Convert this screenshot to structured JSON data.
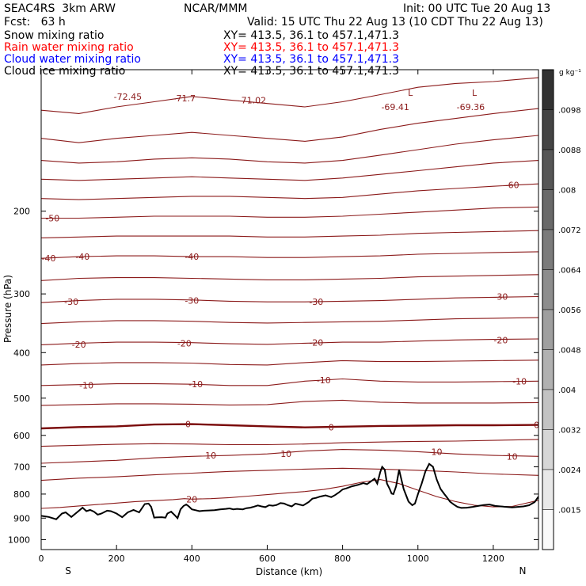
{
  "header": {
    "model": "SEAC4RS  3km ARW",
    "org": "NCAR/MMM",
    "init": "Init: 00 UTC Tue 20 Aug 13",
    "fcst": "Fcst:   63 h",
    "valid": "Valid: 15 UTC Thu 22 Aug 13 (10 CDT Thu 22 Aug 13)"
  },
  "fields": [
    {
      "label": "Snow mixing ratio",
      "xy": "XY= 413.5, 36.1 to 457.1,471.3",
      "color": "#000000"
    },
    {
      "label": "Rain water mixing ratio",
      "xy": "XY= 413.5, 36.1 to 457.1,471.3",
      "color": "#ff0000"
    },
    {
      "label": "Cloud water mixing ratio",
      "xy": "XY= 413.5, 36.1 to 457.1,471.3",
      "color": "#0000ff"
    },
    {
      "label": "Cloud ice mixing ratio",
      "xy": "XY= 413.5, 36.1 to 457.1,471.3",
      "color": "#000000"
    }
  ],
  "colors": {
    "contour": "#8b1a1a",
    "zero_contour": "#7a0a0a",
    "terrain": "#000000"
  },
  "chart_data": {
    "type": "line",
    "title": "",
    "xlabel": "Distance (km)",
    "ylabel": "Pressure (hPa)",
    "xlim": [
      0,
      1320
    ],
    "ylim": [
      1050,
      100
    ],
    "y_scale": "log",
    "x_ticks": [
      0,
      200,
      400,
      600,
      800,
      1000,
      1200
    ],
    "y_ticks": [
      200,
      300,
      400,
      500,
      600,
      700,
      800,
      900,
      1000
    ],
    "x_end_labels": {
      "left": "S",
      "right": "N"
    },
    "temperature_contours": [
      {
        "value": -72,
        "x": [
          0,
          100,
          200,
          300,
          400,
          500,
          600,
          700,
          800,
          900,
          1000,
          1100,
          1200,
          1320
        ],
        "p": [
          122,
          124,
          120,
          117,
          114,
          116,
          118,
          120,
          117,
          113,
          109,
          107,
          106,
          104
        ]
      },
      {
        "value": -70,
        "x": [
          0,
          100,
          200,
          300,
          400,
          500,
          600,
          700,
          800,
          900,
          1000,
          1100,
          1200,
          1320
        ],
        "p": [
          140,
          143,
          140,
          138,
          136,
          138,
          140,
          142,
          139,
          134,
          130,
          127,
          124,
          121
        ]
      },
      {
        "value": -65,
        "x": [
          0,
          100,
          200,
          300,
          400,
          500,
          600,
          700,
          800,
          900,
          1000,
          1100,
          1200,
          1320
        ],
        "p": [
          156,
          158,
          157,
          155,
          154,
          155,
          157,
          158,
          156,
          152,
          148,
          144,
          141,
          138
        ]
      },
      {
        "value": -60,
        "x": [
          0,
          100,
          200,
          300,
          400,
          500,
          600,
          700,
          800,
          900,
          1000,
          1100,
          1200,
          1320
        ],
        "p": [
          171,
          172,
          171,
          170,
          169,
          170,
          171,
          172,
          170,
          167,
          164,
          161,
          158,
          156
        ]
      },
      {
        "value": -55,
        "x": [
          0,
          100,
          200,
          300,
          400,
          500,
          600,
          700,
          800,
          900,
          1000,
          1100,
          1200,
          1320
        ],
        "p": [
          188,
          189,
          188,
          187,
          186,
          186,
          187,
          188,
          187,
          184,
          181,
          179,
          177,
          175
        ]
      },
      {
        "value": -50,
        "x": [
          0,
          100,
          200,
          300,
          400,
          500,
          600,
          700,
          800,
          900,
          1000,
          1100,
          1200,
          1320
        ],
        "p": [
          207,
          207,
          206,
          205,
          205,
          205,
          206,
          206,
          205,
          203,
          201,
          199,
          197,
          196
        ]
      },
      {
        "value": -45,
        "x": [
          0,
          100,
          200,
          300,
          400,
          500,
          600,
          700,
          800,
          900,
          1000,
          1100,
          1200,
          1320
        ],
        "p": [
          228,
          227,
          226,
          226,
          226,
          226,
          227,
          227,
          226,
          225,
          223,
          222,
          221,
          220
        ]
      },
      {
        "value": -40,
        "x": [
          0,
          100,
          200,
          300,
          400,
          500,
          600,
          700,
          800,
          900,
          1000,
          1100,
          1200,
          1320
        ],
        "p": [
          252,
          250,
          249,
          249,
          250,
          250,
          251,
          251,
          250,
          249,
          247,
          246,
          245,
          244
        ]
      },
      {
        "value": -35,
        "x": [
          0,
          100,
          200,
          300,
          400,
          500,
          600,
          700,
          800,
          900,
          1000,
          1100,
          1200,
          1320
        ],
        "p": [
          281,
          278,
          277,
          277,
          278,
          279,
          280,
          280,
          279,
          278,
          276,
          275,
          274,
          273
        ]
      },
      {
        "value": -30,
        "x": [
          0,
          100,
          200,
          300,
          400,
          500,
          600,
          700,
          800,
          900,
          1000,
          1100,
          1200,
          1320
        ],
        "p": [
          313,
          310,
          308,
          308,
          309,
          311,
          312,
          312,
          311,
          310,
          308,
          306,
          305,
          304
        ]
      },
      {
        "value": -25,
        "x": [
          0,
          100,
          200,
          300,
          400,
          500,
          600,
          700,
          800,
          900,
          1000,
          1100,
          1200,
          1320
        ],
        "p": [
          347,
          344,
          342,
          342,
          343,
          345,
          346,
          345,
          344,
          343,
          341,
          339,
          338,
          337
        ]
      },
      {
        "value": -20,
        "x": [
          0,
          100,
          200,
          300,
          400,
          500,
          600,
          700,
          800,
          900,
          1000,
          1100,
          1200,
          1320
        ],
        "p": [
          385,
          382,
          380,
          380,
          381,
          383,
          384,
          382,
          380,
          380,
          378,
          376,
          375,
          374
        ]
      },
      {
        "value": -15,
        "x": [
          0,
          100,
          200,
          300,
          400,
          500,
          600,
          700,
          800,
          900,
          1000,
          1100,
          1200,
          1320
        ],
        "p": [
          425,
          422,
          420,
          420,
          421,
          424,
          425,
          420,
          416,
          418,
          418,
          417,
          416,
          415
        ]
      },
      {
        "value": -10,
        "x": [
          0,
          100,
          200,
          300,
          400,
          500,
          600,
          700,
          800,
          900,
          1000,
          1100,
          1200,
          1320
        ],
        "p": [
          470,
          468,
          466,
          466,
          467,
          470,
          470,
          460,
          455,
          460,
          462,
          462,
          461,
          460
        ]
      },
      {
        "value": -5,
        "x": [
          0,
          100,
          200,
          300,
          400,
          500,
          600,
          700,
          800,
          900,
          1000,
          1100,
          1200,
          1320
        ],
        "p": [
          518,
          516,
          514,
          514,
          515,
          517,
          516,
          508,
          505,
          510,
          512,
          512,
          512,
          511
        ]
      },
      {
        "value": 0,
        "x": [
          0,
          100,
          200,
          300,
          400,
          500,
          600,
          700,
          800,
          900,
          1000,
          1100,
          1200,
          1320
        ],
        "p": [
          580,
          576,
          574,
          569,
          568,
          571,
          574,
          577,
          575,
          573,
          572,
          571,
          571,
          570
        ]
      },
      {
        "value": 5,
        "x": [
          0,
          100,
          200,
          300,
          400,
          500,
          600,
          700,
          800,
          900,
          1000,
          1100,
          1200,
          1320
        ],
        "p": [
          633,
          630,
          627,
          625,
          626,
          628,
          628,
          626,
          622,
          620,
          618,
          617,
          615,
          612
        ]
      },
      {
        "value": 10,
        "x": [
          0,
          100,
          200,
          300,
          400,
          500,
          600,
          700,
          800,
          900,
          1000,
          1100,
          1200,
          1320
        ],
        "p": [
          688,
          683,
          678,
          670,
          665,
          662,
          657,
          648,
          643,
          645,
          650,
          657,
          662,
          665
        ]
      },
      {
        "value": 15,
        "x": [
          0,
          100,
          200,
          300,
          400,
          500,
          600,
          700,
          800,
          900,
          1000,
          1100,
          1200,
          1320
        ],
        "p": [
          748,
          740,
          735,
          728,
          722,
          716,
          712,
          708,
          705,
          708,
          712,
          718,
          725,
          730
        ]
      },
      {
        "value": 20,
        "x": [
          0,
          50,
          100,
          150,
          200,
          250,
          300,
          350,
          380,
          400,
          450,
          500,
          550,
          600,
          650,
          700,
          750,
          800,
          850,
          900,
          950,
          1000,
          1050,
          1100,
          1150,
          1200,
          1250,
          1320
        ],
        "p": [
          858,
          854,
          848,
          842,
          836,
          830,
          826,
          822,
          818,
          820,
          818,
          814,
          808,
          802,
          796,
          790,
          782,
          770,
          755,
          745,
          760,
          785,
          810,
          830,
          845,
          852,
          850,
          825
        ]
      }
    ],
    "contour_labels": [
      {
        "text": "-72.45",
        "x": 230,
        "p": 114
      },
      {
        "text": "-71.7",
        "x": 380,
        "p": 115
      },
      {
        "text": "-71.02",
        "x": 560,
        "p": 116
      },
      {
        "text": "-69.41",
        "x": 940,
        "p": 120
      },
      {
        "text": "-69.36",
        "x": 1140,
        "p": 120
      },
      {
        "text": "-60",
        "x": 1250,
        "p": 176
      },
      {
        "text": "-50",
        "x": 30,
        "p": 207
      },
      {
        "text": "-40",
        "x": 20,
        "p": 252
      },
      {
        "text": "-40",
        "x": 110,
        "p": 250
      },
      {
        "text": "-40",
        "x": 400,
        "p": 250
      },
      {
        "text": "-30",
        "x": 80,
        "p": 312
      },
      {
        "text": "-30",
        "x": 400,
        "p": 310
      },
      {
        "text": "-30",
        "x": 730,
        "p": 312
      },
      {
        "text": "-30",
        "x": 1220,
        "p": 304
      },
      {
        "text": "-20",
        "x": 100,
        "p": 384
      },
      {
        "text": "-20",
        "x": 380,
        "p": 382
      },
      {
        "text": "-20",
        "x": 730,
        "p": 381
      },
      {
        "text": "-20",
        "x": 1220,
        "p": 376
      },
      {
        "text": "-10",
        "x": 120,
        "p": 469
      },
      {
        "text": "-10",
        "x": 410,
        "p": 467
      },
      {
        "text": "-10",
        "x": 750,
        "p": 458
      },
      {
        "text": "-10",
        "x": 1270,
        "p": 460
      },
      {
        "text": "0",
        "x": 390,
        "p": 568
      },
      {
        "text": "0",
        "x": 770,
        "p": 576
      },
      {
        "text": "0",
        "x": 1315,
        "p": 570
      },
      {
        "text": "10",
        "x": 450,
        "p": 662
      },
      {
        "text": "10",
        "x": 650,
        "p": 657
      },
      {
        "text": "10",
        "x": 1050,
        "p": 650
      },
      {
        "text": "10",
        "x": 1250,
        "p": 665
      },
      {
        "text": "20",
        "x": 400,
        "p": 820
      }
    ],
    "extra_text": [
      {
        "text": "L",
        "x": 980,
        "p": 112
      },
      {
        "text": "L",
        "x": 1150,
        "p": 112
      }
    ],
    "terrain": {
      "x": [
        0,
        20,
        40,
        55,
        65,
        80,
        95,
        110,
        120,
        130,
        140,
        150,
        160,
        175,
        185,
        200,
        215,
        230,
        245,
        260,
        275,
        285,
        292,
        300,
        305,
        320,
        330,
        335,
        345,
        355,
        362,
        370,
        378,
        385,
        392,
        400,
        410,
        420,
        432,
        445,
        460,
        475,
        490,
        500,
        510,
        520,
        535,
        545,
        555,
        565,
        575,
        585,
        595,
        605,
        615,
        625,
        635,
        645,
        655,
        665,
        675,
        685,
        695,
        710,
        720,
        730,
        740,
        755,
        770,
        780,
        790,
        800,
        810,
        825,
        840,
        855,
        865,
        875,
        885,
        892,
        900,
        905,
        912,
        918,
        925,
        930,
        935,
        942,
        950,
        962,
        975,
        985,
        992,
        1000,
        1010,
        1020,
        1030,
        1040,
        1050,
        1060,
        1070,
        1078,
        1085,
        1095,
        1105,
        1115,
        1130,
        1145,
        1160,
        1175,
        1190,
        1205,
        1220,
        1235,
        1250,
        1265,
        1280,
        1295,
        1310,
        1320
      ],
      "p": [
        890,
        895,
        905,
        880,
        875,
        895,
        875,
        855,
        870,
        865,
        872,
        885,
        880,
        868,
        870,
        880,
        896,
        875,
        865,
        875,
        840,
        838,
        852,
        898,
        897,
        896,
        898,
        880,
        872,
        888,
        900,
        862,
        848,
        842,
        850,
        862,
        866,
        870,
        868,
        867,
        866,
        862,
        860,
        858,
        862,
        860,
        862,
        857,
        855,
        851,
        846,
        850,
        853,
        845,
        847,
        844,
        836,
        838,
        845,
        850,
        838,
        842,
        846,
        832,
        818,
        815,
        810,
        805,
        812,
        804,
        794,
        782,
        778,
        770,
        765,
        758,
        762,
        752,
        742,
        760,
        718,
        700,
        710,
        760,
        780,
        798,
        800,
        770,
        710,
        780,
        830,
        845,
        838,
        800,
        760,
        715,
        690,
        700,
        745,
        780,
        800,
        815,
        830,
        842,
        852,
        856,
        855,
        852,
        848,
        844,
        842,
        848,
        850,
        852,
        854,
        852,
        850,
        845,
        832,
        810
      ]
    },
    "colorbar": {
      "unit": "g kg⁻¹",
      "labels": [
        ".0098",
        ".0088",
        ".008",
        ".0072",
        ".0064",
        ".0056",
        ".0048",
        ".004",
        ".0032",
        ".0024",
        ".0015"
      ]
    }
  }
}
